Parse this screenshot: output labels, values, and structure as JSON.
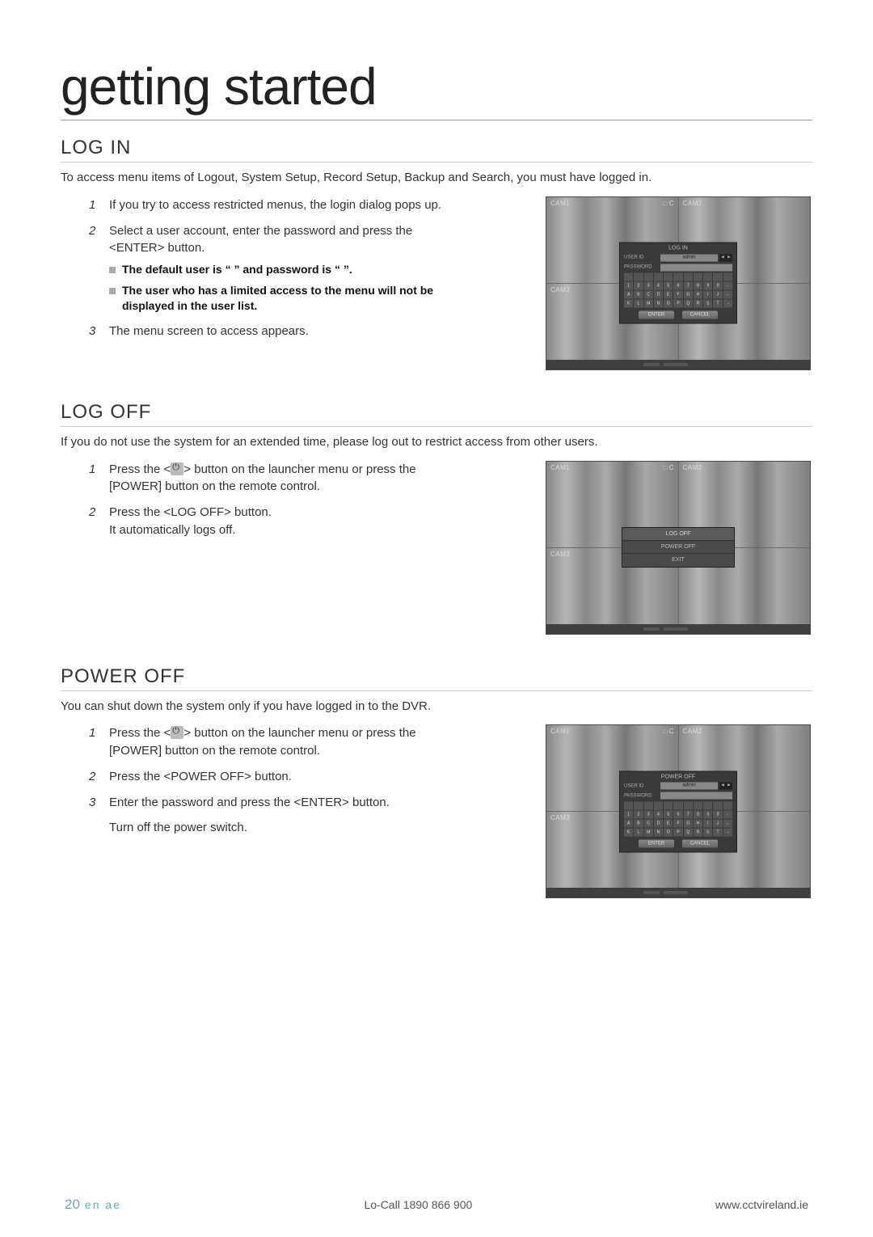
{
  "page_title": "getting started",
  "footer": {
    "page_number": "20",
    "lang": "en ae",
    "phone": "Lo-Call  1890 866 900",
    "url": "www.cctvireland.ie"
  },
  "cam_labels": {
    "cam1": "CAM1",
    "cam2": "CAM2",
    "cam3": "CAM3",
    "rec": "□ C"
  },
  "login": {
    "title": "LOG IN",
    "intro": "To access menu items of Logout, System Setup, Record Setup, Backup and Search, you must have logged in.",
    "steps": [
      "If you try to access restricted menus, the login dialog pops up.",
      "Select a user account, enter the password and press the <ENTER> button.",
      "The menu screen to access appears."
    ],
    "sub": [
      "The default user is “ ” and password is “    ”.",
      "The user who has a limited access to the menu will not be displayed in the user list."
    ],
    "dialog": {
      "title": "LOG IN",
      "user_label": "USER ID",
      "pw_label": "PASSWORD",
      "user_value": "admin",
      "btn_enter": "ENTER",
      "btn_cancel": "CANCEL"
    }
  },
  "logoff": {
    "title": "LOG OFF",
    "intro": "If you do not use the system for an extended time, please log out to restrict access from other users.",
    "steps": [
      {
        "pre": "Press the <",
        "icon": true,
        "post": "> button on the launcher menu or press the [POWER] button on the remote control."
      },
      {
        "text": "Press the <LOG OFF> button.\nIt automatically logs off."
      }
    ],
    "menu": {
      "items": [
        "LOG OFF",
        "POWER OFF",
        "EXIT"
      ]
    }
  },
  "poweroff": {
    "title": "POWER OFF",
    "intro": "You can shut down the system only if you have logged in to the DVR.",
    "steps": [
      {
        "pre": "Press the <",
        "icon": true,
        "post": "> button on the launcher menu or press the [POWER] button on the remote control."
      },
      {
        "text": "Press the <POWER OFF> button."
      },
      {
        "text": "Enter the password and press the <ENTER> button."
      },
      {
        "text": "Turn off the power switch."
      }
    ],
    "dialog": {
      "title": "POWER OFF",
      "user_label": "USER ID",
      "pw_label": "PASSWORD",
      "user_value": "admin",
      "btn_enter": "ENTER",
      "btn_cancel": "CANCEL"
    }
  },
  "keypad_rows": [
    [
      " ",
      " ",
      " ",
      " ",
      " ",
      " ",
      " ",
      " ",
      " ",
      " ",
      " "
    ],
    [
      "1",
      "2",
      "3",
      "4",
      "5",
      "6",
      "7",
      "8",
      "9",
      "0",
      "-"
    ],
    [
      "A",
      "B",
      "C",
      "D",
      "E",
      "F",
      "G",
      "H",
      "I",
      "J",
      "←"
    ],
    [
      "K",
      "L",
      "M",
      "N",
      "O",
      "P",
      "Q",
      "R",
      "S",
      "T",
      "→"
    ]
  ]
}
